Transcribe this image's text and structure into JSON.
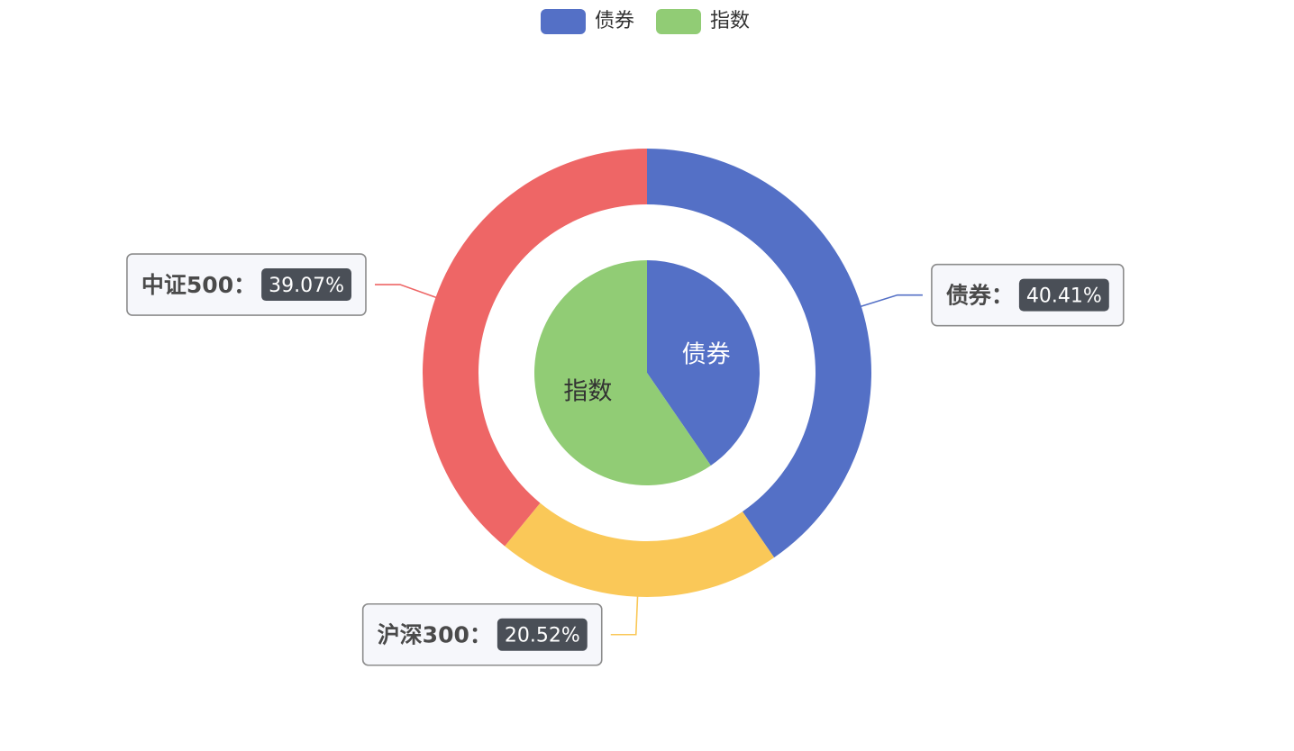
{
  "chart_data": {
    "type": "pie",
    "legend": {
      "placement": "top-center",
      "items": [
        {
          "label": "债券",
          "color": "#5470c6"
        },
        {
          "label": "指数",
          "color": "#91cc75"
        }
      ]
    },
    "inner_pie": {
      "name": "",
      "slices": [
        {
          "label": "债券",
          "value": 40.41,
          "color": "#5470c6",
          "label_color": "#ffffff"
        },
        {
          "label": "指数",
          "value": 59.59,
          "color": "#91cc75",
          "label_color": "#333333"
        }
      ]
    },
    "outer_ring": {
      "name": "",
      "slices": [
        {
          "label": "债券",
          "value": 40.41,
          "percent_text": "40.41%",
          "color": "#5470c6"
        },
        {
          "label": "沪深300",
          "value": 20.52,
          "percent_text": "20.52%",
          "color": "#fac858"
        },
        {
          "label": "中证500",
          "value": 39.07,
          "percent_text": "39.07%",
          "color": "#ee6666"
        }
      ]
    },
    "label_style": {
      "box_background": "#f6f7fb",
      "box_border": "#8c8c8c",
      "name_color": "#4a4a4a",
      "badge_background": "#4a4f57",
      "badge_text_color": "#ffffff",
      "separator": "："
    }
  }
}
